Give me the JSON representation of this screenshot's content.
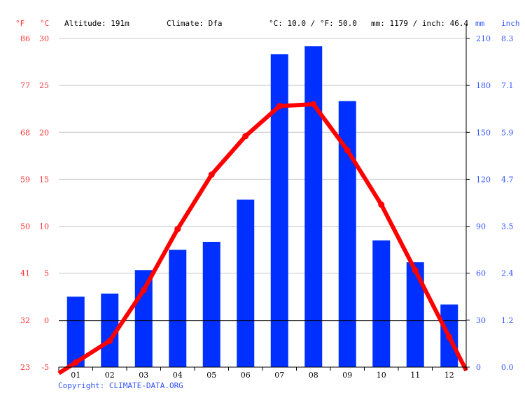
{
  "header": {
    "f_unit": "°F",
    "c_unit": "°C",
    "altitude": "Altitude: 191m",
    "climate": "Climate: Dfa",
    "avg_temp": "°C: 10.0 / °F: 50.0",
    "precip": "mm: 1179 / inch: 46.4",
    "mm_unit": "mm",
    "inch_unit": "inch"
  },
  "copyright": "Copyright: CLIMATE-DATA.ORG",
  "colors": {
    "temp": "#ff0000",
    "precip": "#0030ff",
    "left_axis": "#ff3333",
    "right_axis": "#3355ff"
  },
  "chart_data": {
    "type": "bar+line",
    "categories": [
      "01",
      "02",
      "03",
      "04",
      "05",
      "06",
      "07",
      "08",
      "09",
      "10",
      "11",
      "12"
    ],
    "series": [
      {
        "type": "bar",
        "axis": "right",
        "unit": "mm",
        "values": [
          45,
          47,
          62,
          75,
          80,
          107,
          200,
          205,
          170,
          81,
          67,
          40
        ]
      },
      {
        "type": "line",
        "axis": "left",
        "unit": "°C",
        "values": [
          -4.5,
          -2.2,
          3.2,
          9.7,
          15.5,
          19.6,
          22.8,
          23.0,
          18.1,
          12.3,
          5.3,
          -1.8
        ]
      }
    ],
    "y_left_c": {
      "ticks": [
        30,
        25,
        20,
        15,
        10,
        5,
        0,
        -5
      ],
      "range": [
        -5,
        30
      ]
    },
    "y_left_f": {
      "ticks": [
        "86",
        "77",
        "68",
        "59",
        "50",
        "41",
        "32",
        "23"
      ]
    },
    "y_right_mm": {
      "ticks": [
        "210",
        "180",
        "150",
        "120",
        "90",
        "60",
        "30",
        "0"
      ],
      "range": [
        0,
        210
      ]
    },
    "y_right_inch": {
      "ticks": [
        "8.3",
        "7.1",
        "5.9",
        "4.7",
        "3.5",
        "2.4",
        "1.2",
        "0.0"
      ]
    },
    "grid": true
  }
}
